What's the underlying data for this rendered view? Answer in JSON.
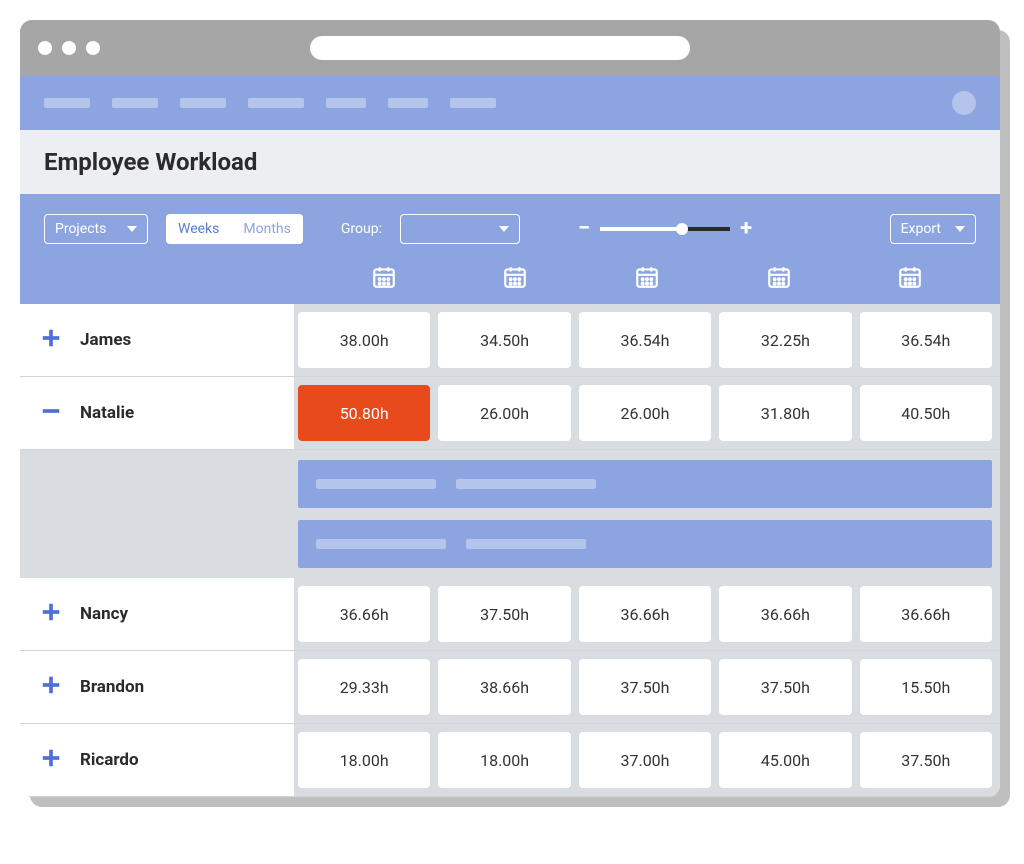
{
  "colors": {
    "chrome": "#a6a6a6",
    "brand": "#8ca4e0",
    "brand_light": "#b4c4ea",
    "accent": "#4f6fd8",
    "alert": "#e84a1c",
    "grid_bg": "#d9dce0",
    "header_bg": "#eceef1",
    "text": "#2b2b2b"
  },
  "nav": {
    "placeholder_widths": [
      46,
      46,
      46,
      56,
      40,
      40,
      46
    ]
  },
  "page": {
    "title": "Employee Workload"
  },
  "toolbar": {
    "projects_label": "Projects",
    "view_weeks": "Weeks",
    "view_months": "Months",
    "group_label": "Group:",
    "export_label": "Export",
    "zoom": {
      "value_pct": 65
    }
  },
  "columns": 5,
  "employees": [
    {
      "name": "James",
      "expanded": false,
      "hours": [
        "38.00h",
        "34.50h",
        "36.54h",
        "32.25h",
        "36.54h"
      ],
      "alerts": [
        false,
        false,
        false,
        false,
        false
      ]
    },
    {
      "name": "Natalie",
      "expanded": true,
      "hours": [
        "50.80h",
        "26.00h",
        "26.00h",
        "31.80h",
        "40.50h"
      ],
      "alerts": [
        true,
        false,
        false,
        false,
        false
      ],
      "tasks": [
        {
          "ph_widths": [
            120,
            140
          ]
        },
        {
          "ph_widths": [
            130,
            120
          ]
        }
      ]
    },
    {
      "name": "Nancy",
      "expanded": false,
      "hours": [
        "36.66h",
        "37.50h",
        "36.66h",
        "36.66h",
        "36.66h"
      ],
      "alerts": [
        false,
        false,
        false,
        false,
        false
      ]
    },
    {
      "name": "Brandon",
      "expanded": false,
      "hours": [
        "29.33h",
        "38.66h",
        "37.50h",
        "37.50h",
        "15.50h"
      ],
      "alerts": [
        false,
        false,
        false,
        false,
        false
      ]
    },
    {
      "name": "Ricardo",
      "expanded": false,
      "hours": [
        "18.00h",
        "18.00h",
        "37.00h",
        "45.00h",
        "37.50h"
      ],
      "alerts": [
        false,
        false,
        false,
        false,
        false
      ]
    }
  ]
}
